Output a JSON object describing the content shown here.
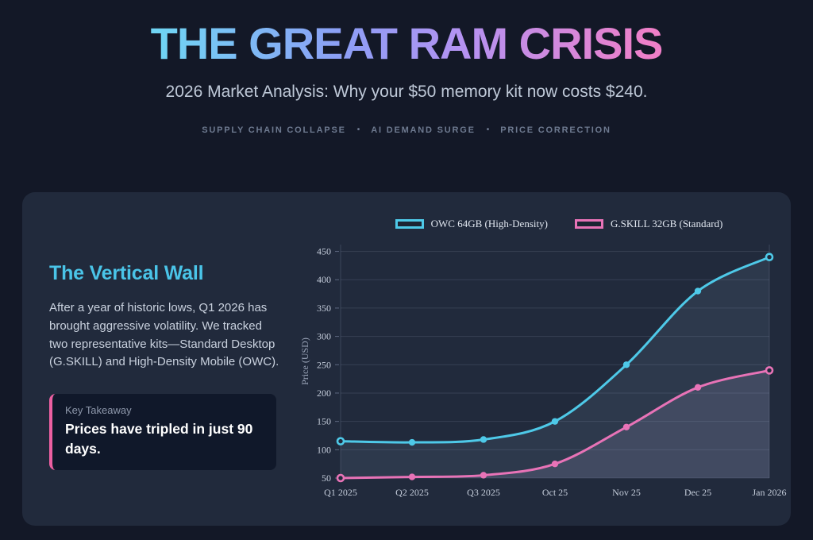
{
  "page": {
    "title": "THE GREAT RAM CRISIS",
    "subtitle": "2026 Market Analysis: Why your $50 memory kit now costs $240.",
    "tags": [
      "SUPPLY CHAIN COLLAPSE",
      "AI DEMAND SURGE",
      "PRICE CORRECTION"
    ],
    "tag_separator": "•"
  },
  "panel": {
    "heading": "The Vertical Wall",
    "body": "After a year of historic lows, Q1 2026 has brought aggressive volatility. We tracked two representative kits—Standard Desktop (G.SKILL) and High-Density Mobile (OWC).",
    "takeaway_label": "Key Takeaway",
    "takeaway_text": "Prices have tripled in just 90 days."
  },
  "colors": {
    "page_background": "#131827",
    "card_background": "#212a3c",
    "callout_background": "#10182a",
    "heading_accent": "#4ac4e8",
    "takeaway_border": "#ec5fa1",
    "title_gradient": [
      "#70d4f4",
      "#8d9ef6",
      "#b692f1",
      "#ef7fc8"
    ],
    "gridline": "rgba(168,182,212,0.16)",
    "axis_text": "#c3cbd9"
  },
  "chart_data": {
    "type": "line",
    "title": "",
    "xlabel": "",
    "ylabel": "Price (USD)",
    "categories": [
      "Q1 2025",
      "Q2 2025",
      "Q3 2025",
      "Oct 25",
      "Nov 25",
      "Dec 25",
      "Jan 2026"
    ],
    "series": [
      {
        "name": "OWC 64GB (High-Density)",
        "color": "#4ec9e8",
        "fill": "rgba(157,196,222,0.10)",
        "values": [
          115,
          113,
          118,
          150,
          250,
          380,
          440
        ]
      },
      {
        "name": "G.SKILL 32GB (Standard)",
        "color": "#e873b7",
        "fill": "rgba(190,183,228,0.14)",
        "values": [
          50,
          52,
          55,
          75,
          140,
          210,
          240
        ]
      }
    ],
    "yticks": [
      50,
      100,
      150,
      200,
      250,
      300,
      350,
      400,
      450
    ],
    "ylim": [
      50,
      462
    ],
    "grid": true,
    "legend_position": "top",
    "marker_style": "endpoints-hollow"
  }
}
